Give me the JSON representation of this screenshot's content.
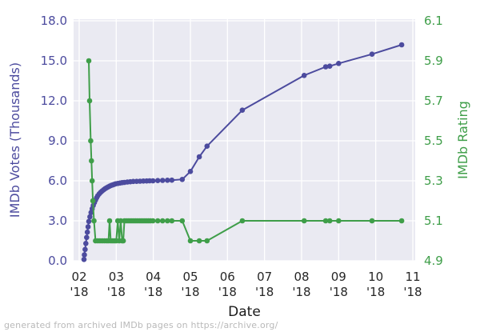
{
  "figure": {
    "footer": "generated from archived IMDb pages on https://archive.org/"
  },
  "chart_data": {
    "type": "line",
    "title": "",
    "xlabel": "Date",
    "ylabel_left": "IMDb Votes (Thousands)",
    "ylabel_right": "IMDb Rating",
    "grid": true,
    "legend": "none",
    "plot_bg": "#eaeaf2",
    "grid_color": "#ffffff",
    "xtick_color": "#262626",
    "xlim": [
      1.849,
      11.065
    ],
    "ylim_left": [
      0,
      18
    ],
    "ylim_right": [
      4.9,
      6.1
    ],
    "x_ticks": [
      {
        "month": 2,
        "line1": "02",
        "line2": "'18"
      },
      {
        "month": 3,
        "line1": "03",
        "line2": "'18"
      },
      {
        "month": 4,
        "line1": "04",
        "line2": "'18"
      },
      {
        "month": 5,
        "line1": "05",
        "line2": "'18"
      },
      {
        "month": 6,
        "line1": "06",
        "line2": "'18"
      },
      {
        "month": 7,
        "line1": "07",
        "line2": "'18"
      },
      {
        "month": 8,
        "line1": "08",
        "line2": "'18"
      },
      {
        "month": 9,
        "line1": "09",
        "line2": "'18"
      },
      {
        "month": 10,
        "line1": "10",
        "line2": "'18"
      },
      {
        "month": 11,
        "line1": "11",
        "line2": "'18"
      }
    ],
    "y_ticks_left": [
      {
        "v": 0,
        "label": "0.0"
      },
      {
        "v": 3,
        "label": "3.0"
      },
      {
        "v": 6,
        "label": "6.0"
      },
      {
        "v": 9,
        "label": "9.0"
      },
      {
        "v": 12,
        "label": "12.0"
      },
      {
        "v": 15,
        "label": "15.0"
      },
      {
        "v": 18,
        "label": "18.0"
      }
    ],
    "y_ticks_right": [
      {
        "v": 4.9,
        "label": "4.9"
      },
      {
        "v": 5.1,
        "label": "5.1"
      },
      {
        "v": 5.3,
        "label": "5.3"
      },
      {
        "v": 5.5,
        "label": "5.5"
      },
      {
        "v": 5.7,
        "label": "5.7"
      },
      {
        "v": 5.9,
        "label": "5.9"
      },
      {
        "v": 6.1,
        "label": "6.1"
      }
    ],
    "series": [
      {
        "name": "IMDb Votes (Thousands)",
        "axis": "left",
        "color": "#4c4b9e",
        "points": [
          [
            2.13,
            0.1
          ],
          [
            2.14,
            0.45
          ],
          [
            2.16,
            0.85
          ],
          [
            2.18,
            1.3
          ],
          [
            2.2,
            1.75
          ],
          [
            2.22,
            2.15
          ],
          [
            2.24,
            2.55
          ],
          [
            2.26,
            2.95
          ],
          [
            2.29,
            3.3
          ],
          [
            2.32,
            3.62
          ],
          [
            2.35,
            3.9
          ],
          [
            2.38,
            4.15
          ],
          [
            2.41,
            4.37
          ],
          [
            2.44,
            4.56
          ],
          [
            2.47,
            4.73
          ],
          [
            2.5,
            4.88
          ],
          [
            2.54,
            5.02
          ],
          [
            2.58,
            5.14
          ],
          [
            2.62,
            5.24
          ],
          [
            2.66,
            5.33
          ],
          [
            2.7,
            5.41
          ],
          [
            2.74,
            5.48
          ],
          [
            2.78,
            5.54
          ],
          [
            2.82,
            5.6
          ],
          [
            2.86,
            5.65
          ],
          [
            2.9,
            5.69
          ],
          [
            2.94,
            5.73
          ],
          [
            2.98,
            5.77
          ],
          [
            3.04,
            5.8
          ],
          [
            3.1,
            5.83
          ],
          [
            3.16,
            5.86
          ],
          [
            3.22,
            5.88
          ],
          [
            3.3,
            5.91
          ],
          [
            3.38,
            5.93
          ],
          [
            3.46,
            5.95
          ],
          [
            3.55,
            5.96
          ],
          [
            3.64,
            5.97
          ],
          [
            3.73,
            5.98
          ],
          [
            3.82,
            5.99
          ],
          [
            3.9,
            6.0
          ],
          [
            3.99,
            6.0
          ],
          [
            4.12,
            6.02
          ],
          [
            4.25,
            6.03
          ],
          [
            4.38,
            6.04
          ],
          [
            4.5,
            6.05
          ],
          [
            4.78,
            6.1
          ],
          [
            5.0,
            6.7
          ],
          [
            5.24,
            7.8
          ],
          [
            5.45,
            8.6
          ],
          [
            6.4,
            11.3
          ],
          [
            8.07,
            13.9
          ],
          [
            8.65,
            14.55
          ],
          [
            8.76,
            14.6
          ],
          [
            9.0,
            14.8
          ],
          [
            9.9,
            15.5
          ],
          [
            10.7,
            16.2
          ]
        ]
      },
      {
        "name": "IMDb Rating",
        "axis": "right",
        "color": "#3f9e49",
        "points": [
          [
            2.26,
            5.9
          ],
          [
            2.28,
            5.7
          ],
          [
            2.31,
            5.5
          ],
          [
            2.33,
            5.4
          ],
          [
            2.35,
            5.3
          ],
          [
            2.37,
            5.2
          ],
          [
            2.4,
            5.1
          ],
          [
            2.44,
            5.0
          ],
          [
            2.5,
            5.0
          ],
          [
            2.56,
            5.0
          ],
          [
            2.62,
            5.0
          ],
          [
            2.68,
            5.0
          ],
          [
            2.74,
            5.0
          ],
          [
            2.79,
            5.0
          ],
          [
            2.82,
            5.1
          ],
          [
            2.85,
            5.0
          ],
          [
            2.9,
            5.0
          ],
          [
            2.95,
            5.0
          ],
          [
            3.0,
            5.0
          ],
          [
            3.04,
            5.1
          ],
          [
            3.08,
            5.0
          ],
          [
            3.12,
            5.1
          ],
          [
            3.16,
            5.0
          ],
          [
            3.19,
            5.0
          ],
          [
            3.22,
            5.1
          ],
          [
            3.27,
            5.1
          ],
          [
            3.32,
            5.1
          ],
          [
            3.37,
            5.1
          ],
          [
            3.42,
            5.1
          ],
          [
            3.47,
            5.1
          ],
          [
            3.52,
            5.1
          ],
          [
            3.57,
            5.1
          ],
          [
            3.62,
            5.1
          ],
          [
            3.67,
            5.1
          ],
          [
            3.72,
            5.1
          ],
          [
            3.77,
            5.1
          ],
          [
            3.82,
            5.1
          ],
          [
            3.87,
            5.1
          ],
          [
            3.92,
            5.1
          ],
          [
            3.99,
            5.1
          ],
          [
            4.12,
            5.1
          ],
          [
            4.25,
            5.1
          ],
          [
            4.38,
            5.1
          ],
          [
            4.5,
            5.1
          ],
          [
            4.78,
            5.1
          ],
          [
            5.0,
            5.0
          ],
          [
            5.24,
            5.0
          ],
          [
            5.45,
            5.0
          ],
          [
            6.4,
            5.1
          ],
          [
            8.07,
            5.1
          ],
          [
            8.65,
            5.1
          ],
          [
            8.76,
            5.1
          ],
          [
            9.0,
            5.1
          ],
          [
            9.9,
            5.1
          ],
          [
            10.7,
            5.1
          ]
        ]
      }
    ]
  }
}
